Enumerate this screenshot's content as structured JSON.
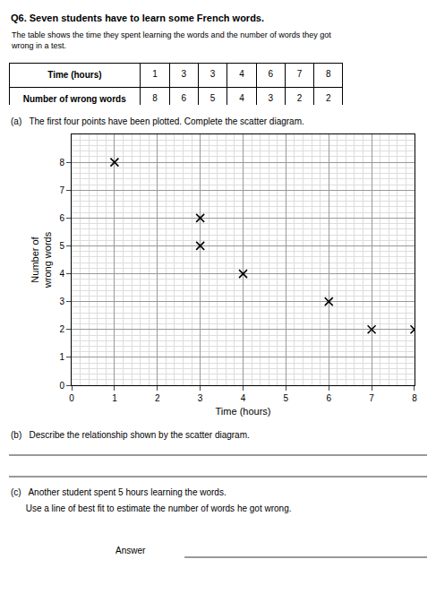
{
  "chart_data": {
    "type": "scatter",
    "title": "Q6. Seven students have to learn some French words.",
    "subtitle": "The table shows the time they spent learning the words and the number of words they got\nwrong in a test.",
    "table": [
      [
        "Time (hours)",
        "1",
        "3",
        "3",
        "4",
        "6",
        "7",
        "8"
      ],
      [
        "Number of wrong words",
        "8",
        "6",
        "5",
        "4",
        "3",
        "2",
        "2"
      ]
    ],
    "annotations": [
      "(a)   The first four points have been plotted. Complete the scatter diagram.",
      "(b)   Describe the relationship shown by the scatter diagram.",
      "(c)   Another student spent 5 hours learning the words.",
      "      Use a line of best fit to estimate the number of words he got wrong.",
      "Answer"
    ],
    "xlabel": "Time (hours)",
    "ylabel": "Number of\nwrong words",
    "series": [
      {
        "x": [
          1,
          3,
          3,
          4
        ],
        "values": [
          8,
          6,
          5,
          4
        ],
        "color": "#000000",
        "marker": "x"
      },
      {
        "x": [
          6,
          7,
          8
        ],
        "values": [
          3,
          2,
          2
        ],
        "color": "#000000",
        "marker": "x"
      }
    ],
    "xlim": [
      0,
      8
    ],
    "ylim": [
      0,
      9
    ],
    "xticks": [
      0,
      1,
      2,
      3,
      4,
      5,
      6,
      7,
      8
    ],
    "yticks": [
      0,
      1,
      2,
      3,
      4,
      5,
      6,
      7,
      8
    ],
    "grid": true
  }
}
